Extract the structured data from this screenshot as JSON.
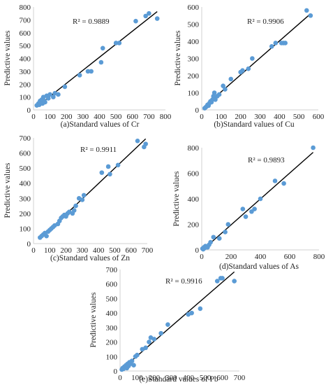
{
  "figure": {
    "colors": {
      "points": "#5b9bd5",
      "trendline": "#000000",
      "axis": "#d0d0d0",
      "text": "#222222"
    }
  },
  "chart_data": [
    {
      "type": "scatter",
      "xlabel": "(a)Standard values of Cr",
      "ylabel": "Predictive values",
      "annotation": "R² = 0.9889",
      "xlim": [
        0,
        800
      ],
      "ylim": [
        0,
        800
      ],
      "xticks": [
        0,
        100,
        200,
        300,
        400,
        500,
        600,
        700,
        800
      ],
      "yticks": [
        0,
        100,
        200,
        300,
        400,
        500,
        600,
        700,
        800
      ],
      "grid": false,
      "trendline": true,
      "x": [
        20,
        30,
        35,
        40,
        45,
        50,
        55,
        60,
        65,
        70,
        80,
        90,
        100,
        120,
        130,
        150,
        190,
        280,
        330,
        350,
        410,
        420,
        500,
        520,
        620,
        680,
        700,
        750
      ],
      "y": [
        35,
        50,
        40,
        70,
        55,
        80,
        50,
        100,
        70,
        60,
        110,
        90,
        120,
        100,
        130,
        120,
        180,
        270,
        300,
        300,
        370,
        480,
        520,
        520,
        690,
        730,
        750,
        710
      ]
    },
    {
      "type": "scatter",
      "xlabel": "(b)Standard values of Cu",
      "ylabel": "Predictive values",
      "annotation": "R² = 0.9906",
      "xlim": [
        0,
        600
      ],
      "ylim": [
        0,
        600
      ],
      "xticks": [
        0,
        100,
        200,
        300,
        400,
        500,
        600
      ],
      "yticks": [
        0,
        100,
        200,
        300,
        400,
        500,
        600
      ],
      "grid": false,
      "trendline": true,
      "x": [
        15,
        20,
        25,
        30,
        35,
        40,
        45,
        50,
        55,
        60,
        65,
        70,
        80,
        90,
        110,
        120,
        150,
        200,
        210,
        240,
        260,
        360,
        380,
        410,
        420,
        430,
        540,
        560
      ],
      "y": [
        10,
        15,
        20,
        30,
        25,
        40,
        50,
        45,
        60,
        80,
        100,
        60,
        80,
        90,
        140,
        120,
        180,
        220,
        230,
        240,
        300,
        370,
        390,
        390,
        390,
        390,
        580,
        550
      ]
    },
    {
      "type": "scatter",
      "xlabel": "(c)Standard values of Zn",
      "ylabel": "Predictive values",
      "annotation": "R² = 0.9911",
      "xlim": [
        0,
        700
      ],
      "ylim": [
        0,
        700
      ],
      "xticks": [
        0,
        100,
        200,
        300,
        400,
        500,
        600,
        700
      ],
      "yticks": [
        0,
        100,
        200,
        300,
        400,
        500,
        600,
        700
      ],
      "grid": false,
      "trendline": true,
      "x": [
        40,
        50,
        60,
        70,
        80,
        90,
        100,
        110,
        120,
        130,
        150,
        160,
        170,
        180,
        190,
        200,
        210,
        220,
        240,
        250,
        260,
        280,
        300,
        310,
        420,
        460,
        470,
        520,
        640,
        680,
        690
      ],
      "y": [
        40,
        50,
        60,
        70,
        50,
        80,
        90,
        100,
        110,
        120,
        130,
        150,
        170,
        180,
        190,
        180,
        200,
        210,
        200,
        220,
        250,
        300,
        290,
        320,
        470,
        510,
        460,
        520,
        680,
        640,
        660
      ]
    },
    {
      "type": "scatter",
      "xlabel": "(d)Standard values of As",
      "ylabel": "Predictive values",
      "annotation": "R² = 0.9893",
      "xlim": [
        0,
        800
      ],
      "ylim": [
        0,
        800
      ],
      "xticks": [
        0,
        200,
        400,
        600,
        800
      ],
      "yticks": [
        0,
        200,
        400,
        600,
        800
      ],
      "grid": false,
      "trendline": true,
      "x": [
        5,
        10,
        15,
        20,
        25,
        30,
        40,
        50,
        60,
        80,
        120,
        160,
        180,
        280,
        300,
        340,
        360,
        400,
        500,
        560,
        760
      ],
      "y": [
        10,
        5,
        20,
        15,
        30,
        25,
        20,
        40,
        60,
        100,
        90,
        140,
        200,
        320,
        260,
        300,
        320,
        400,
        540,
        520,
        800
      ]
    },
    {
      "type": "scatter",
      "xlabel": "(e)Standard values of Pb",
      "ylabel": "Predictive values",
      "annotation": "R² = 0.9916",
      "xlim": [
        0,
        700
      ],
      "ylim": [
        0,
        700
      ],
      "xticks": [
        0,
        100,
        200,
        300,
        400,
        500,
        600,
        700
      ],
      "yticks": [
        0,
        100,
        200,
        300,
        400,
        500,
        600,
        700
      ],
      "grid": false,
      "trendline": true,
      "x": [
        10,
        15,
        20,
        25,
        30,
        35,
        40,
        45,
        50,
        55,
        60,
        70,
        80,
        90,
        100,
        130,
        150,
        170,
        180,
        200,
        240,
        280,
        400,
        420,
        470,
        570,
        590,
        600,
        670
      ],
      "y": [
        10,
        20,
        15,
        30,
        25,
        40,
        20,
        50,
        35,
        60,
        50,
        70,
        40,
        100,
        110,
        150,
        160,
        200,
        230,
        220,
        260,
        320,
        390,
        400,
        430,
        620,
        640,
        640,
        620
      ]
    }
  ]
}
